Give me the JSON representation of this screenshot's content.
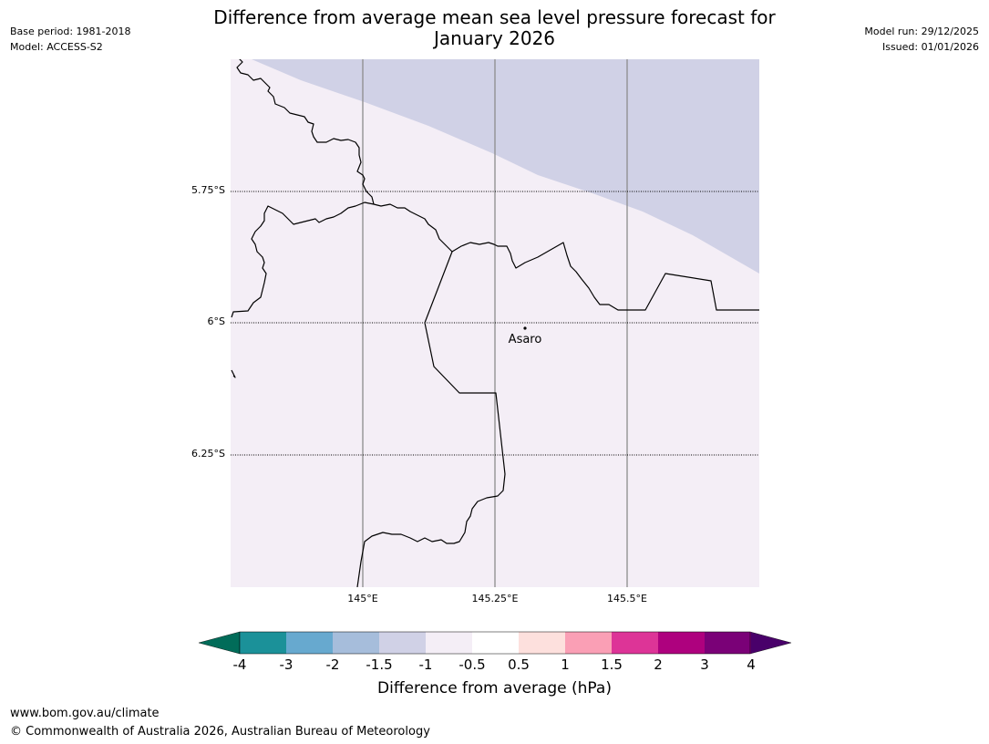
{
  "title": {
    "line1": "Difference from average mean sea level pressure forecast for",
    "line2": "January 2026"
  },
  "meta_left": {
    "base_period": "Base period: 1981-2018",
    "model": "Model: ACCESS-S2"
  },
  "meta_right": {
    "model_run": "Model run: 29/12/2025",
    "issued": "Issued: 01/01/2026"
  },
  "map": {
    "latitude_labels": [
      "5.75°S",
      "6°S",
      "6.25°S"
    ],
    "longitude_labels": [
      "145°E",
      "145.25°E",
      "145.5°E"
    ],
    "place": {
      "name": "Asaro",
      "lat": -6.01,
      "lon": 145.3
    },
    "background_fill_color": "#f4eef6",
    "low_anomaly_fill_color": "#d0d1e6"
  },
  "colorbar": {
    "ticks": [
      "-4",
      "-3",
      "-2",
      "-1.5",
      "-1",
      "-0.5",
      "0.5",
      "1",
      "1.5",
      "2",
      "3",
      "4"
    ],
    "colors": [
      "#1b9199",
      "#67a9cf",
      "#a6bddb",
      "#d0d1e6",
      "#f4eef6",
      "#ffffff",
      "#fde0dd",
      "#fa9fb5",
      "#dd3497",
      "#ae017e",
      "#7a0177"
    ],
    "extend_low_color": "#016c59",
    "extend_high_color": "#49006a",
    "label": "Difference from average (hPa)"
  },
  "footer": {
    "url": "www.bom.gov.au/climate",
    "copyright": "© Commonwealth of Australia 2026, Australian Bureau of Meteorology"
  }
}
